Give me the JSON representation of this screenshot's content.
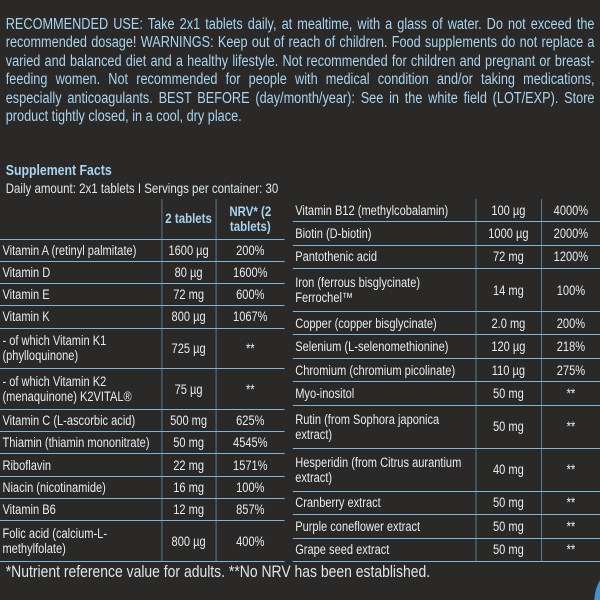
{
  "recommended_use": "RECOMMENDED USE: Take 2x1 tablets daily, at mealtime, with a glass of water. Do not exceed the recommended dosage! WARNINGS: Keep out of reach of children. Food supplements do not replace a varied and balanced diet and a healthy lifestyle. Not recommended for children and pregnant or breast-feeding women. Not recommended for people with medical condition and/or taking medications, especially anticoagulants. BEST BEFORE (day/month/year): See in the white field (LOT/EXP). Store product tightly closed, in a cool, dry place.",
  "supplement_facts": {
    "title": "Supplement Facts",
    "daily_amount": "Daily amount: 2x1 tablets I Servings per container: 30",
    "header": [
      "2 tablets",
      "NRV* (2 tablets)"
    ],
    "left_rows": [
      [
        "Vitamin A (retinyl palmitate)",
        "1600 µg",
        "200%"
      ],
      [
        "Vitamin D",
        "80 µg",
        "1600%"
      ],
      [
        "Vitamin E",
        "72 mg",
        "600%"
      ],
      [
        "Vitamin K",
        "800 µg",
        "1067%"
      ],
      [
        "- of which Vitamin K1 (phylloquinone)",
        "725 µg",
        "**"
      ],
      [
        "- of which Vitamin K2 (menaquinone) K2VITAL®",
        "75 µg",
        "**"
      ],
      [
        "Vitamin C (L-ascorbic acid)",
        "500 mg",
        "625%"
      ],
      [
        "Thiamin (thiamin mononitrate)",
        "50 mg",
        "4545%"
      ],
      [
        "Riboflavin",
        "22 mg",
        "1571%"
      ],
      [
        "Niacin (nicotinamide)",
        "16 mg",
        "100%"
      ],
      [
        "Vitamin B6",
        "12 mg",
        "857%"
      ],
      [
        "Folic acid (calcium-L-methylfolate)",
        "800 µg",
        "400%"
      ]
    ],
    "right_rows": [
      [
        "Vitamin B12 (methylcobalamin)",
        "100 µg",
        "4000%"
      ],
      [
        "Biotin (D-biotin)",
        "1000 µg",
        "2000%"
      ],
      [
        "Pantothenic acid",
        "72 mg",
        "1200%"
      ],
      [
        "Iron (ferrous bisglycinate) Ferrochel™",
        "14 mg",
        "100%"
      ],
      [
        "Copper (copper bisglycinate)",
        "2.0 mg",
        "200%"
      ],
      [
        "Selenium (L-selenomethionine)",
        "120 µg",
        "218%"
      ],
      [
        "Chromium (chromium picolinate)",
        "110 µg",
        "275%"
      ],
      [
        "Myo-inositol",
        "50 mg",
        "**"
      ],
      [
        "Rutin (from Sophora japonica extract)",
        "50 mg",
        "**"
      ],
      [
        "Hesperidin (from Citrus aurantium extract)",
        "40 mg",
        "**"
      ],
      [
        "Cranberry extract",
        "50 mg",
        "**"
      ],
      [
        "Purple coneflower extract",
        "50 mg",
        "**"
      ],
      [
        "Grape seed extract",
        "50 mg",
        "**"
      ]
    ]
  },
  "footnote": "*Nutrient reference value for adults. **No NRV has been established."
}
